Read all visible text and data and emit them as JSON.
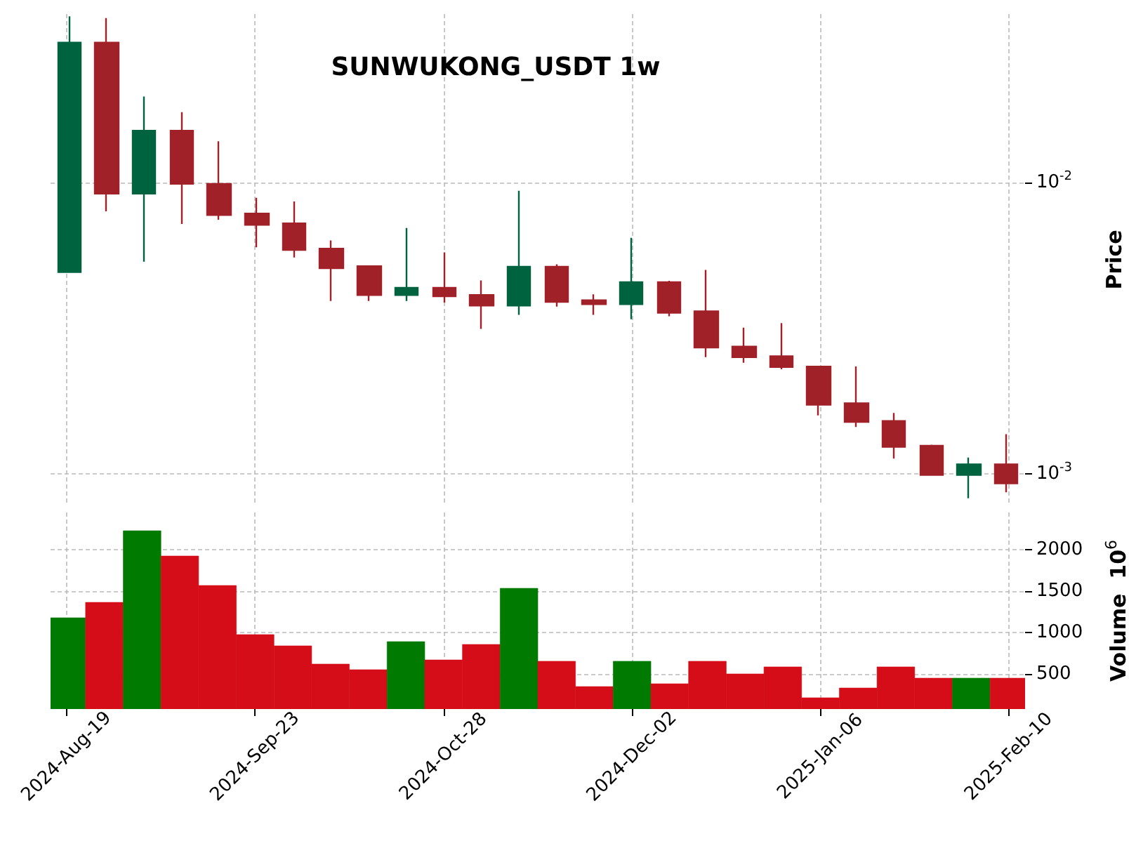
{
  "chart_data": [
    {
      "type": "candlestick",
      "title": "SUNWUKONG_USDT 1w",
      "ylabel": "Price",
      "categories": [
        null,
        null,
        null,
        null,
        null,
        null,
        null,
        null,
        null,
        null,
        null,
        null,
        null,
        null,
        null,
        null,
        null,
        null,
        null,
        null,
        null,
        null,
        null,
        null,
        null,
        null
      ],
      "ohlc": [
        [
          0.00494,
          0.0373,
          0.00494,
          0.0303
        ],
        [
          0.0303,
          0.0368,
          0.00799,
          0.00918
        ],
        [
          0.00918,
          0.0198,
          0.00536,
          0.0151
        ],
        [
          0.0151,
          0.0175,
          0.00723,
          0.00992
        ],
        [
          0.00992,
          0.0139,
          0.00747,
          0.00775
        ],
        [
          0.00784,
          0.00889,
          0.00601,
          0.00717
        ],
        [
          0.00726,
          0.00863,
          0.00554,
          0.00588
        ],
        [
          0.00594,
          0.00634,
          0.00393,
          0.00509
        ],
        [
          0.00517,
          0.00517,
          0.00393,
          0.00412
        ],
        [
          0.00412,
          0.007,
          0.00393,
          0.00436
        ],
        [
          0.00436,
          0.00577,
          0.00388,
          0.00408
        ],
        [
          0.00412,
          0.00462,
          0.00315,
          0.00379
        ],
        [
          0.00379,
          0.00939,
          0.00352,
          0.00515
        ],
        [
          0.00515,
          0.00525,
          0.00376,
          0.0039
        ],
        [
          0.00395,
          0.00414,
          0.00352,
          0.00383
        ],
        [
          0.00383,
          0.00648,
          0.0034,
          0.00456
        ],
        [
          0.00456,
          0.00461,
          0.00348,
          0.00358
        ],
        [
          0.00362,
          0.00502,
          0.00252,
          0.00272
        ],
        [
          0.00274,
          0.00318,
          0.00241,
          0.00252
        ],
        [
          0.00254,
          0.0033,
          0.00229,
          0.00233
        ],
        [
          0.00234,
          0.00235,
          0.00159,
          0.00173
        ],
        [
          0.00175,
          0.00234,
          0.00145,
          0.00151
        ],
        [
          0.00152,
          0.00162,
          0.00113,
          0.00124
        ],
        [
          0.00125,
          0.00126,
          0.000993,
          0.000993
        ],
        [
          0.000993,
          0.00114,
          0.000826,
          0.00108
        ],
        [
          0.00108,
          0.00137,
          0.000866,
          0.000929
        ]
      ],
      "colors": [
        "#006340",
        "#a02128",
        "#006340",
        "#a02128",
        "#a02128",
        "#a02128",
        "#a02128",
        "#a02128",
        "#a02128",
        "#006340",
        "#a02128",
        "#a02128",
        "#006340",
        "#a02128",
        "#a02128",
        "#006340",
        "#a02128",
        "#a02128",
        "#a02128",
        "#a02128",
        "#a02128",
        "#a02128",
        "#a02128",
        "#a02128",
        "#006340",
        "#a02128"
      ],
      "log": "y",
      "ylim": [
        0.00078,
        0.038
      ],
      "yticks": [
        {
          "value": 0.001,
          "label": "10$^{-3}$"
        },
        {
          "value": 0.01,
          "label": "10$^{-2}$"
        }
      ],
      "tick_labels": "y",
      "grid": true
    },
    {
      "type": "bar",
      "ylabel": "Volume  10$^{6}$",
      "x": [
        "2024-08-19",
        "2024-08-26",
        "2024-09-02",
        "2024-09-09",
        "2024-09-16",
        "2024-09-23",
        "2024-09-30",
        "2024-10-07",
        "2024-10-14",
        "2024-10-21",
        "2024-10-28",
        "2024-11-04",
        "2024-11-11",
        "2024-11-18",
        "2024-11-25",
        "2024-12-02",
        "2024-12-09",
        "2024-12-16",
        "2024-12-23",
        "2024-12-30",
        "2025-01-06",
        "2025-01-13",
        "2025-01-20",
        "2025-01-27",
        "2025-02-03",
        "2025-02-10"
      ],
      "values": [
        1178,
        1364,
        2229,
        1924,
        1568,
        975,
        839,
        619,
        551,
        890,
        669,
        856,
        1534,
        653,
        347,
        653,
        381,
        653,
        500,
        585,
        212,
        330,
        585,
        449,
        449,
        449
      ],
      "colors": [
        "#007a00",
        "#d50d18",
        "#007a00",
        "#d50d18",
        "#d50d18",
        "#d50d18",
        "#d50d18",
        "#d50d18",
        "#d50d18",
        "#007a00",
        "#d50d18",
        "#d50d18",
        "#007a00",
        "#d50d18",
        "#d50d18",
        "#007a00",
        "#d50d18",
        "#d50d18",
        "#d50d18",
        "#d50d18",
        "#d50d18",
        "#d50d18",
        "#d50d18",
        "#d50d18",
        "#007a00",
        "#d50d18"
      ],
      "ylim": [
        76,
        2450
      ],
      "yticks": [
        500,
        1000,
        1500,
        2000
      ],
      "xlim": [
        "2024-08-16",
        "2025-02-13"
      ],
      "xticks": [
        {
          "value": "2024-08-19",
          "label": "2024-Aug-19"
        },
        {
          "value": "2024-09-23",
          "label": "2024-Sep-23"
        },
        {
          "value": "2024-10-28",
          "label": "2024-Oct-28"
        },
        {
          "value": "2024-12-02",
          "label": "2024-Dec-02"
        },
        {
          "value": "2025-01-06",
          "label": "2025-Jan-06"
        },
        {
          "value": "2025-02-10",
          "label": "2025-Feb-10"
        }
      ],
      "grid": true
    }
  ]
}
